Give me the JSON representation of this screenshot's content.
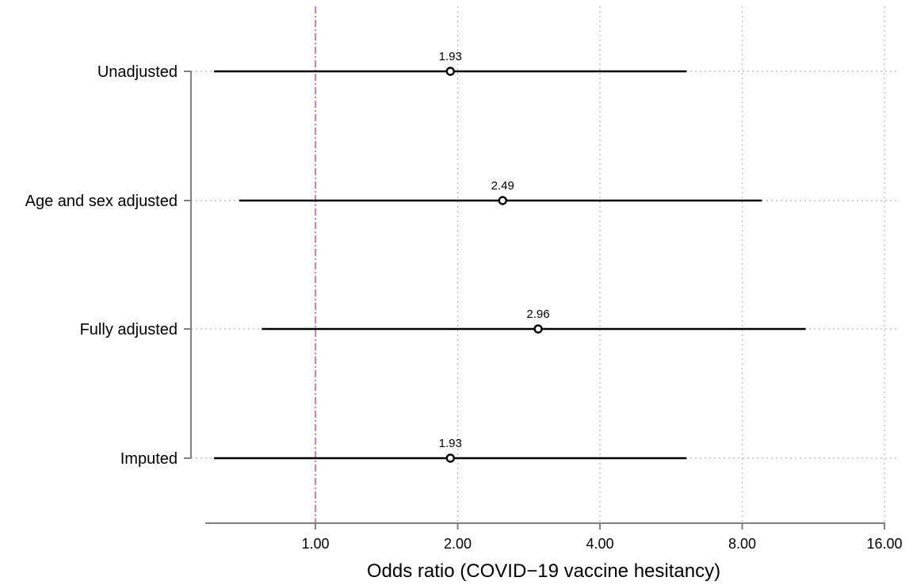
{
  "chart_data": {
    "type": "scatter",
    "subtype": "forest-plot",
    "title": "",
    "xlabel": "Odds ratio (COVID−19 vaccine hesitancy)",
    "ylabel": "",
    "x_scale": "log",
    "xlim": [
      0.6,
      16
    ],
    "x_ticks": [
      1,
      2,
      4,
      8,
      16
    ],
    "x_tick_labels": [
      "1.00",
      "2.00",
      "4.00",
      "8.00",
      "16.00"
    ],
    "reference_line": {
      "x": 1,
      "style": "dashed",
      "color": "#c0649a"
    },
    "grid": true,
    "grid_style": "dotted",
    "series": [
      {
        "categories": [
          "Unadjusted",
          "Age and sex adjusted",
          "Fully adjusted",
          "Imputed"
        ],
        "estimates": [
          1.93,
          2.49,
          2.96,
          1.93
        ],
        "estimate_labels": [
          "1.93",
          "2.49",
          "2.96",
          "1.93"
        ],
        "ci_low": [
          0.61,
          0.69,
          0.77,
          0.61
        ],
        "ci_high": [
          6.1,
          8.8,
          10.9,
          6.1
        ]
      }
    ],
    "colors": {
      "line": "#000000",
      "axis": "#808080",
      "grid": "#b4b4b4",
      "reference": "#c0649a"
    }
  }
}
